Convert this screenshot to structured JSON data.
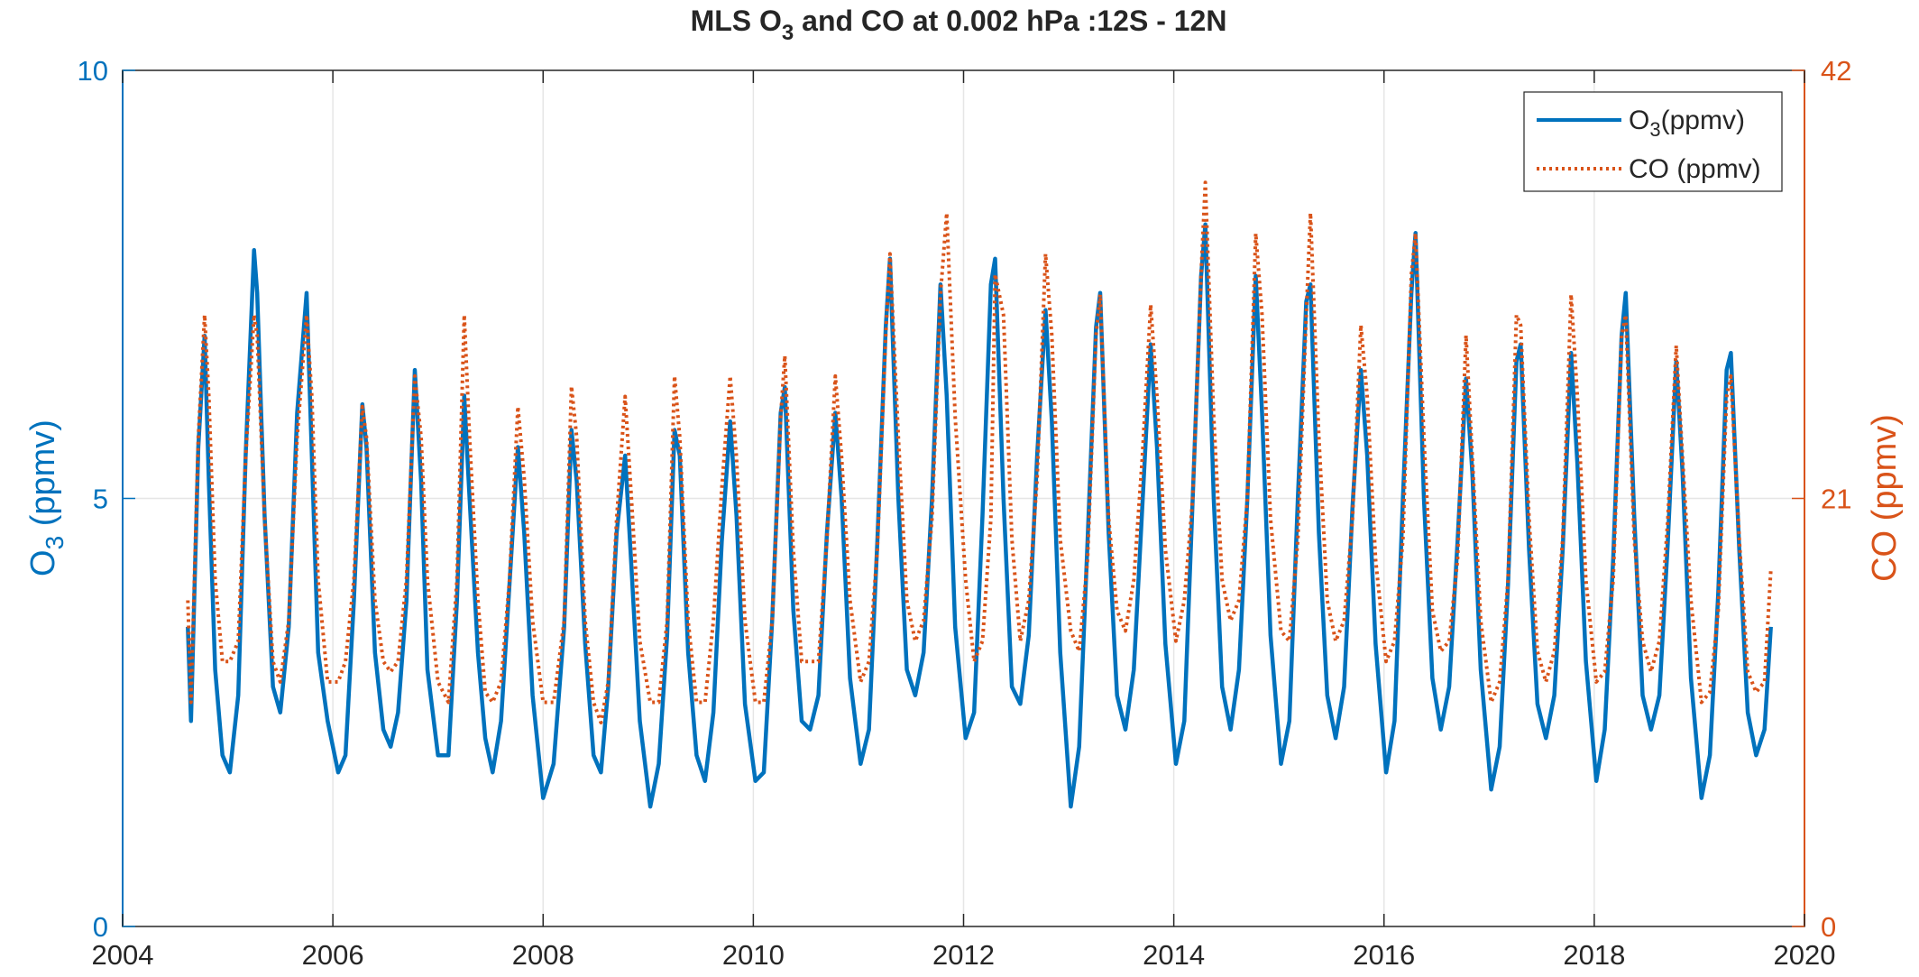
{
  "chart_data": {
    "type": "line",
    "title": {
      "prefix": "MLS O",
      "sub": "3",
      "suffix": " and CO at 0.002 hPa :12S - 12N"
    },
    "ylabel_left": {
      "prefix": "O",
      "sub": "3",
      "suffix": " (ppmv)"
    },
    "ylabel_right": "CO (ppmv)",
    "xlim": [
      2004,
      2020
    ],
    "ylim_left": [
      0,
      10
    ],
    "ylim_right": [
      0,
      42
    ],
    "x_ticks": [
      2004,
      2006,
      2008,
      2010,
      2012,
      2014,
      2016,
      2018,
      2020
    ],
    "x_tick_labels": [
      "2004",
      "2006",
      "2008",
      "2010",
      "2012",
      "2014",
      "2016",
      "2018",
      "2020"
    ],
    "y_ticks_left": [
      0,
      5,
      10
    ],
    "y_tick_labels_left": [
      "0",
      "5",
      "10"
    ],
    "y_ticks_right": [
      0,
      21,
      42
    ],
    "y_tick_labels_right": [
      "0",
      "21",
      "42"
    ],
    "grid": true,
    "legend_placement": "top-right",
    "colors": {
      "o3": "#0072BD",
      "co": "#D95319",
      "axis": "#262626",
      "grid": "#e6e6e6"
    },
    "series": [
      {
        "name": "O3(ppmv)",
        "legend": {
          "prefix": "O",
          "sub": "3",
          "suffix": "(ppmv)"
        },
        "axis": "left",
        "style": "solid",
        "x": [
          2004.62,
          2004.65,
          2004.72,
          2004.78,
          2004.82,
          2004.88,
          2004.95,
          2005.02,
          2005.1,
          2005.17,
          2005.25,
          2005.28,
          2005.35,
          2005.43,
          2005.5,
          2005.58,
          2005.66,
          2005.75,
          2005.8,
          2005.86,
          2005.95,
          2006.05,
          2006.12,
          2006.2,
          2006.28,
          2006.32,
          2006.4,
          2006.48,
          2006.55,
          2006.62,
          2006.7,
          2006.78,
          2006.84,
          2006.9,
          2007.0,
          2007.1,
          2007.18,
          2007.25,
          2007.3,
          2007.38,
          2007.45,
          2007.52,
          2007.6,
          2007.68,
          2007.76,
          2007.82,
          2007.9,
          2008.0,
          2008.1,
          2008.2,
          2008.27,
          2008.32,
          2008.4,
          2008.48,
          2008.55,
          2008.62,
          2008.7,
          2008.78,
          2008.84,
          2008.92,
          2009.02,
          2009.1,
          2009.18,
          2009.25,
          2009.3,
          2009.38,
          2009.46,
          2009.54,
          2009.62,
          2009.7,
          2009.78,
          2009.84,
          2009.92,
          2010.02,
          2010.1,
          2010.18,
          2010.26,
          2010.3,
          2010.38,
          2010.46,
          2010.54,
          2010.62,
          2010.7,
          2010.78,
          2010.84,
          2010.92,
          2011.02,
          2011.1,
          2011.18,
          2011.26,
          2011.3,
          2011.38,
          2011.46,
          2011.54,
          2011.62,
          2011.7,
          2011.78,
          2011.84,
          2011.92,
          2012.02,
          2012.1,
          2012.18,
          2012.26,
          2012.3,
          2012.38,
          2012.46,
          2012.54,
          2012.62,
          2012.7,
          2012.78,
          2012.84,
          2012.92,
          2013.02,
          2013.1,
          2013.18,
          2013.26,
          2013.3,
          2013.38,
          2013.46,
          2013.54,
          2013.62,
          2013.7,
          2013.78,
          2013.84,
          2013.92,
          2014.02,
          2014.1,
          2014.18,
          2014.26,
          2014.3,
          2014.38,
          2014.46,
          2014.54,
          2014.62,
          2014.7,
          2014.78,
          2014.84,
          2014.92,
          2015.02,
          2015.1,
          2015.18,
          2015.26,
          2015.3,
          2015.38,
          2015.46,
          2015.54,
          2015.62,
          2015.7,
          2015.78,
          2015.84,
          2015.92,
          2016.02,
          2016.1,
          2016.18,
          2016.26,
          2016.3,
          2016.38,
          2016.46,
          2016.54,
          2016.62,
          2016.7,
          2016.78,
          2016.84,
          2016.92,
          2017.02,
          2017.1,
          2017.18,
          2017.26,
          2017.3,
          2017.38,
          2017.46,
          2017.54,
          2017.62,
          2017.7,
          2017.78,
          2017.84,
          2017.92,
          2018.02,
          2018.1,
          2018.18,
          2018.26,
          2018.3,
          2018.38,
          2018.46,
          2018.54,
          2018.62,
          2018.7,
          2018.78,
          2018.84,
          2018.92,
          2019.02,
          2019.1,
          2019.18,
          2019.26,
          2019.3,
          2019.38,
          2019.46,
          2019.54,
          2019.62,
          2019.68
        ],
        "y": [
          3.5,
          2.4,
          5.6,
          6.9,
          5.2,
          3.0,
          2.0,
          1.8,
          2.7,
          5.5,
          7.9,
          7.4,
          4.8,
          2.8,
          2.5,
          3.5,
          6.0,
          7.4,
          5.5,
          3.2,
          2.4,
          1.8,
          2.0,
          3.8,
          6.1,
          5.6,
          3.2,
          2.3,
          2.1,
          2.5,
          3.8,
          6.5,
          5.2,
          3.0,
          2.0,
          2.0,
          3.8,
          6.2,
          5.0,
          3.2,
          2.2,
          1.8,
          2.4,
          4.0,
          5.6,
          4.6,
          2.7,
          1.5,
          1.9,
          3.5,
          5.8,
          5.2,
          3.3,
          2.0,
          1.8,
          2.8,
          4.6,
          5.5,
          4.2,
          2.4,
          1.4,
          1.9,
          3.4,
          5.8,
          5.5,
          3.2,
          2.0,
          1.7,
          2.5,
          4.5,
          5.9,
          4.8,
          2.6,
          1.7,
          1.8,
          3.6,
          6.0,
          6.3,
          3.7,
          2.4,
          2.3,
          2.7,
          4.6,
          6.0,
          5.0,
          2.9,
          1.9,
          2.3,
          4.5,
          7.0,
          7.8,
          5.0,
          3.0,
          2.7,
          3.2,
          5.0,
          7.5,
          6.2,
          3.5,
          2.2,
          2.5,
          4.8,
          7.5,
          7.8,
          5.0,
          2.8,
          2.6,
          3.4,
          5.5,
          7.2,
          5.9,
          3.2,
          1.4,
          2.1,
          4.5,
          7.0,
          7.4,
          4.6,
          2.7,
          2.3,
          3.0,
          4.9,
          6.8,
          5.6,
          3.3,
          1.9,
          2.4,
          5.0,
          7.6,
          8.2,
          5.0,
          2.8,
          2.3,
          3.0,
          5.0,
          7.6,
          6.0,
          3.4,
          1.9,
          2.4,
          5.0,
          7.3,
          7.5,
          4.6,
          2.7,
          2.2,
          2.8,
          4.9,
          6.5,
          5.5,
          3.3,
          1.8,
          2.4,
          5.0,
          7.4,
          8.1,
          5.0,
          2.9,
          2.3,
          2.8,
          4.5,
          6.4,
          5.3,
          3.0,
          1.6,
          2.1,
          4.0,
          6.6,
          6.8,
          4.4,
          2.6,
          2.2,
          2.7,
          4.4,
          6.7,
          5.4,
          3.1,
          1.7,
          2.3,
          4.3,
          6.9,
          7.4,
          4.8,
          2.7,
          2.3,
          2.7,
          4.5,
          6.6,
          5.3,
          2.9,
          1.5,
          2.0,
          3.9,
          6.5,
          6.7,
          4.4,
          2.5,
          2.0,
          2.3,
          3.5
        ]
      },
      {
        "name": "CO (ppmv)",
        "legend": {
          "prefix": "",
          "sub": "",
          "suffix": "CO (ppmv)"
        },
        "axis": "right",
        "style": "dotted",
        "x": [
          2004.62,
          2004.65,
          2004.72,
          2004.78,
          2004.82,
          2004.88,
          2004.95,
          2005.02,
          2005.1,
          2005.17,
          2005.25,
          2005.28,
          2005.35,
          2005.43,
          2005.5,
          2005.58,
          2005.66,
          2005.75,
          2005.8,
          2005.86,
          2005.95,
          2006.05,
          2006.12,
          2006.2,
          2006.28,
          2006.32,
          2006.4,
          2006.48,
          2006.55,
          2006.62,
          2006.7,
          2006.78,
          2006.84,
          2006.9,
          2007.0,
          2007.1,
          2007.18,
          2007.25,
          2007.3,
          2007.38,
          2007.45,
          2007.52,
          2007.6,
          2007.68,
          2007.76,
          2007.82,
          2007.9,
          2008.0,
          2008.1,
          2008.2,
          2008.27,
          2008.32,
          2008.4,
          2008.48,
          2008.55,
          2008.62,
          2008.7,
          2008.78,
          2008.84,
          2008.92,
          2009.02,
          2009.1,
          2009.18,
          2009.25,
          2009.3,
          2009.38,
          2009.46,
          2009.54,
          2009.62,
          2009.7,
          2009.78,
          2009.84,
          2009.92,
          2010.02,
          2010.1,
          2010.18,
          2010.26,
          2010.3,
          2010.38,
          2010.46,
          2010.54,
          2010.62,
          2010.7,
          2010.78,
          2010.84,
          2010.92,
          2011.02,
          2011.1,
          2011.18,
          2011.26,
          2011.3,
          2011.38,
          2011.46,
          2011.54,
          2011.62,
          2011.7,
          2011.78,
          2011.84,
          2011.92,
          2012.02,
          2012.1,
          2012.18,
          2012.26,
          2012.3,
          2012.38,
          2012.46,
          2012.54,
          2012.62,
          2012.7,
          2012.78,
          2012.84,
          2012.92,
          2013.02,
          2013.1,
          2013.18,
          2013.26,
          2013.3,
          2013.38,
          2013.46,
          2013.54,
          2013.62,
          2013.7,
          2013.78,
          2013.84,
          2013.92,
          2014.02,
          2014.1,
          2014.18,
          2014.26,
          2014.3,
          2014.38,
          2014.46,
          2014.54,
          2014.62,
          2014.7,
          2014.78,
          2014.84,
          2014.92,
          2015.02,
          2015.1,
          2015.18,
          2015.26,
          2015.3,
          2015.38,
          2015.46,
          2015.54,
          2015.62,
          2015.7,
          2015.78,
          2015.84,
          2015.92,
          2016.02,
          2016.1,
          2016.18,
          2016.26,
          2016.3,
          2016.38,
          2016.46,
          2016.54,
          2016.62,
          2016.7,
          2016.78,
          2016.84,
          2016.92,
          2017.02,
          2017.1,
          2017.18,
          2017.26,
          2017.3,
          2017.38,
          2017.46,
          2017.54,
          2017.62,
          2017.7,
          2017.78,
          2017.84,
          2017.92,
          2018.02,
          2018.1,
          2018.18,
          2018.26,
          2018.3,
          2018.38,
          2018.46,
          2018.54,
          2018.62,
          2018.7,
          2018.78,
          2018.84,
          2018.92,
          2019.02,
          2019.1,
          2019.18,
          2019.26,
          2019.3,
          2019.38,
          2019.46,
          2019.54,
          2019.62,
          2019.68
        ],
        "y": [
          16.0,
          11.0,
          24.0,
          30.0,
          26.0,
          17.0,
          13.0,
          13.0,
          14.0,
          23.0,
          30.0,
          29.0,
          20.0,
          13.0,
          12.0,
          15.0,
          24.0,
          30.0,
          26.0,
          17.0,
          12.0,
          12.0,
          13.0,
          17.0,
          25.5,
          24.0,
          16.0,
          13.0,
          12.5,
          13.0,
          17.0,
          27.0,
          24.0,
          17.0,
          12.0,
          11.0,
          17.0,
          30.0,
          24.0,
          16.0,
          11.5,
          11.0,
          12.0,
          17.0,
          25.5,
          22.0,
          15.0,
          11.0,
          11.0,
          15.0,
          26.5,
          24.0,
          15.0,
          11.0,
          10.0,
          12.0,
          20.0,
          26.0,
          21.0,
          14.0,
          11.0,
          11.0,
          15.0,
          27.0,
          24.0,
          15.0,
          11.0,
          11.0,
          15.0,
          21.5,
          27.0,
          23.0,
          15.0,
          11.0,
          11.0,
          15.0,
          25.0,
          28.0,
          18.5,
          13.0,
          13.0,
          13.0,
          19.0,
          27.0,
          23.0,
          16.0,
          12.0,
          13.0,
          18.5,
          29.0,
          33.0,
          24.0,
          16.0,
          14.0,
          15.0,
          20.0,
          31.0,
          35.0,
          25.0,
          17.0,
          13.0,
          14.0,
          20.0,
          32.0,
          30.0,
          19.0,
          14.0,
          16.0,
          22.0,
          33.0,
          29.0,
          19.0,
          14.5,
          13.5,
          18.0,
          29.0,
          31.0,
          20.0,
          15.5,
          14.5,
          17.0,
          23.0,
          30.5,
          26.0,
          18.5,
          14.0,
          16.0,
          21.0,
          32.0,
          36.5,
          25.0,
          17.0,
          15.0,
          16.0,
          21.0,
          34.0,
          30.0,
          20.0,
          14.5,
          14.0,
          19.0,
          30.0,
          35.0,
          24.0,
          16.0,
          14.0,
          15.0,
          20.0,
          29.5,
          26.0,
          18.0,
          13.0,
          14.0,
          19.0,
          32.0,
          34.0,
          24.0,
          15.5,
          13.5,
          14.0,
          18.0,
          29.0,
          23.0,
          15.0,
          11.0,
          12.0,
          17.0,
          30.0,
          29.5,
          20.0,
          13.5,
          12.0,
          13.5,
          19.0,
          31.0,
          26.0,
          17.0,
          12.0,
          12.5,
          17.0,
          29.0,
          30.0,
          19.0,
          14.0,
          12.5,
          14.0,
          20.0,
          28.5,
          23.0,
          16.0,
          11.0,
          11.5,
          15.5,
          26.0,
          27.0,
          19.0,
          12.5,
          11.5,
          12.0,
          17.5
        ]
      }
    ]
  }
}
